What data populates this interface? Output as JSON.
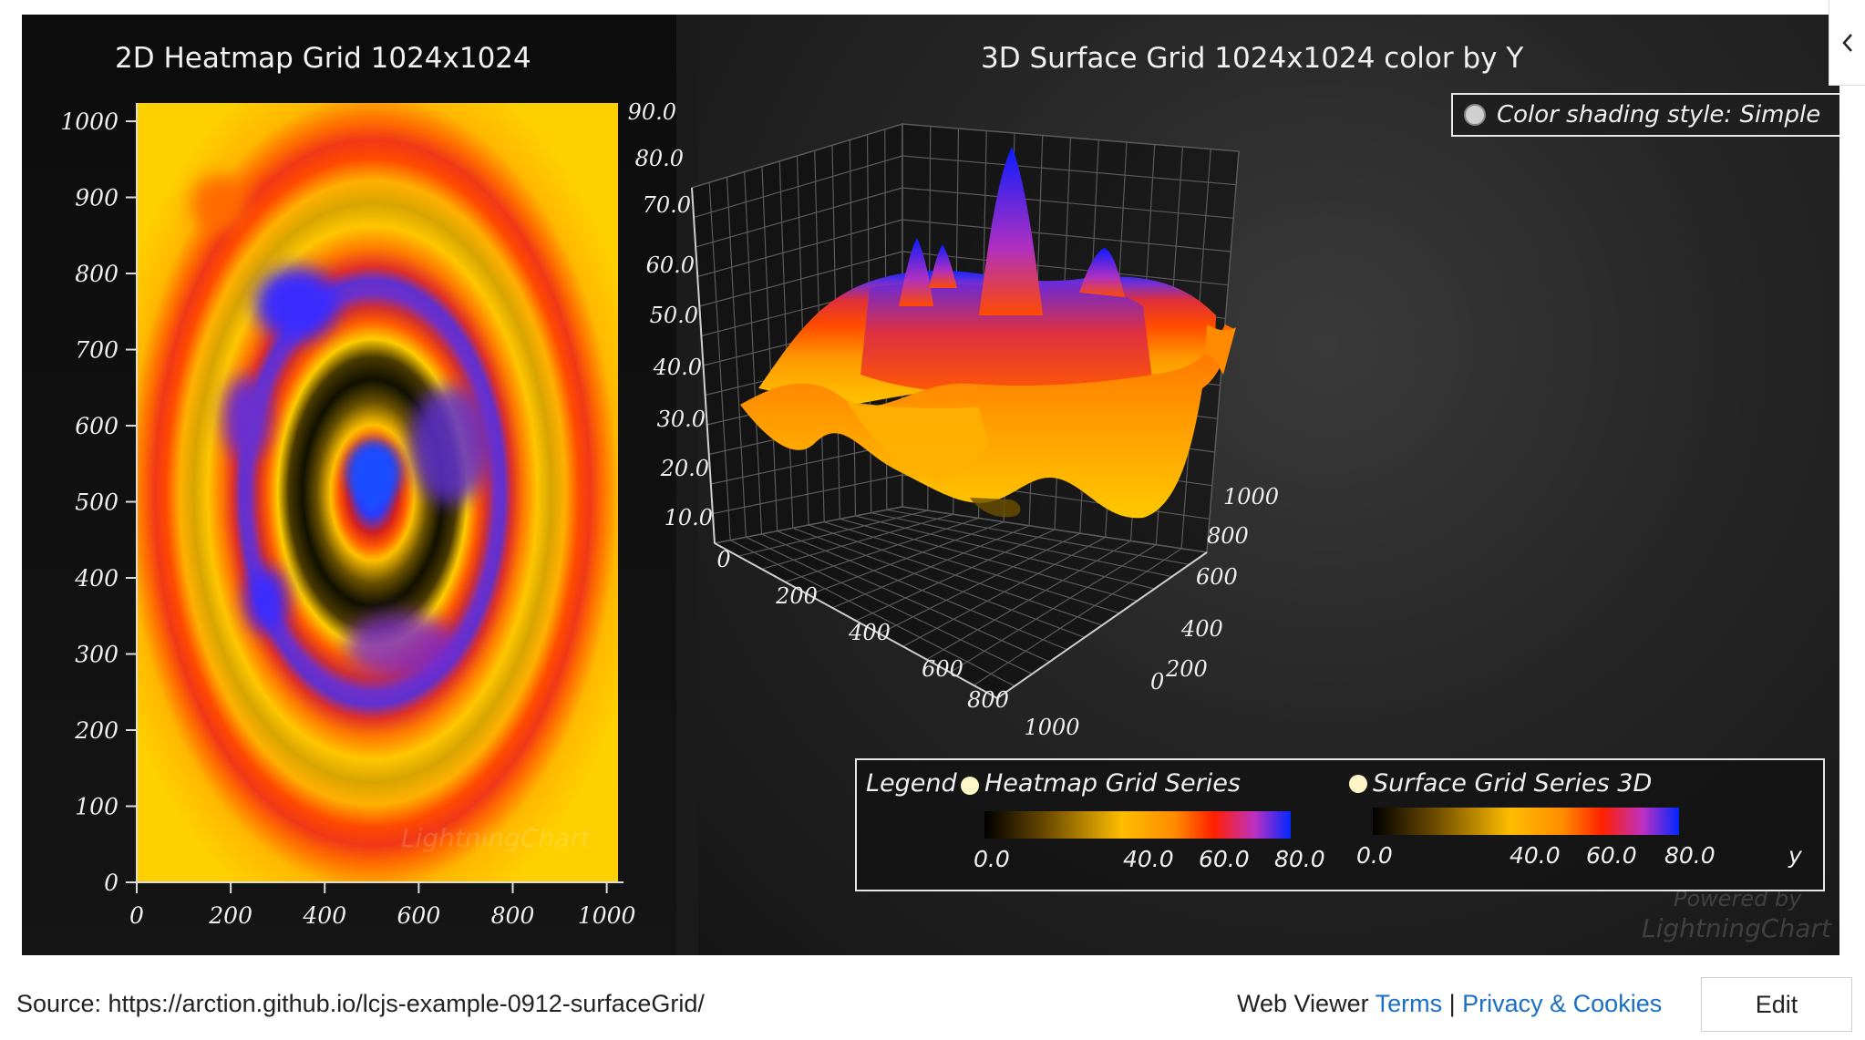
{
  "left_chart": {
    "title": "2D Heatmap Grid 1024x1024"
  },
  "right_chart": {
    "title": "3D Surface Grid 1024x1024 color by Y"
  },
  "shading_button": {
    "label": "Color shading style: Simple"
  },
  "legend": {
    "title": "Legend",
    "entries": [
      {
        "label": "Heatmap Grid Series",
        "ticks": [
          "0.0",
          "40.0",
          "60.0",
          "80.0"
        ]
      },
      {
        "label": "Surface Grid Series 3D",
        "ticks": [
          "0.0",
          "40.0",
          "60.0",
          "80.0"
        ]
      }
    ],
    "axis_name": "y"
  },
  "watermarks": {
    "heatmap": "LightningChart",
    "surface_line1": "Powered by",
    "surface_line2": "LightningChart"
  },
  "footer": {
    "source": "Source: https://arction.github.io/lcjs-example-0912-surfaceGrid/",
    "web_viewer": "Web Viewer",
    "terms": "Terms",
    "separator": "|",
    "privacy": "Privacy & Cookies",
    "edit": "Edit"
  },
  "colors": {
    "palette": [
      "#000000",
      "#ffbd00",
      "#ff2000",
      "#0028ff"
    ],
    "background": "#101010"
  },
  "chart_data": [
    {
      "type": "heatmap",
      "title": "2D Heatmap Grid 1024x1024",
      "x_ticks": [
        0,
        200,
        400,
        600,
        800,
        1000
      ],
      "y_ticks": [
        0,
        100,
        200,
        300,
        400,
        500,
        600,
        700,
        800,
        900,
        1000
      ],
      "xlim": [
        0,
        1024
      ],
      "ylim": [
        0,
        1024
      ],
      "color_scale": {
        "min": 0.0,
        "max": 80.0,
        "ticks": [
          0.0,
          40.0,
          60.0,
          80.0
        ]
      },
      "grid": false
    },
    {
      "type": "surface",
      "title": "3D Surface Grid 1024x1024 color by Y",
      "y_ticks": [
        "10.0",
        "20.0",
        "30.0",
        "40.0",
        "50.0",
        "60.0",
        "70.0",
        "80.0",
        "90.0"
      ],
      "x_ticks": [
        "0",
        "200",
        "400",
        "600",
        "800",
        "1000"
      ],
      "z_ticks": [
        "0",
        "200",
        "400",
        "600",
        "800",
        "1000"
      ],
      "color_by": "y",
      "color_scale": {
        "min": 0.0,
        "max": 80.0,
        "ticks": [
          0.0,
          40.0,
          60.0,
          80.0
        ]
      },
      "grid": true
    }
  ]
}
